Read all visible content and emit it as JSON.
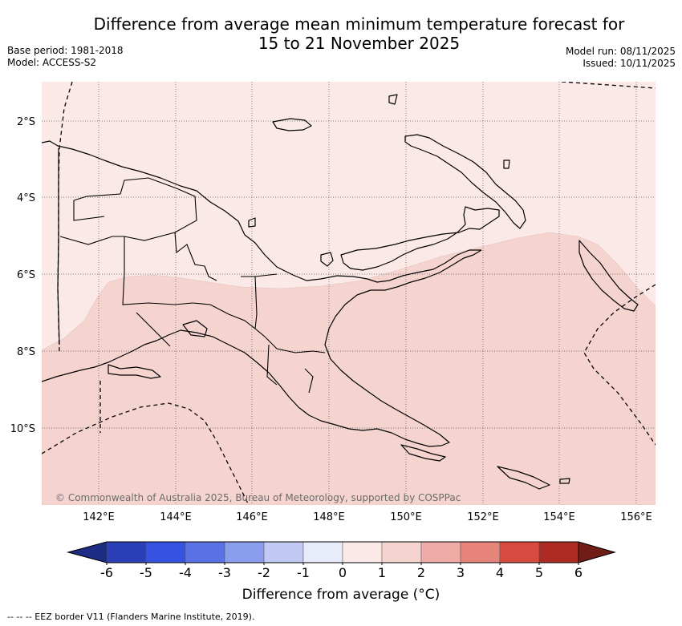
{
  "header": {
    "title_line1": "Difference from average mean minimum temperature forecast for",
    "title_line2": "15 to 21 November 2025",
    "base_period": "Base period: 1981-2018",
    "model": "Model: ACCESS-S2",
    "model_run": "Model run: 08/11/2025",
    "issued": "Issued: 10/11/2025"
  },
  "map": {
    "lat_labels": [
      "2°S",
      "4°S",
      "6°S",
      "8°S",
      "10°S"
    ],
    "lon_labels": [
      "142°E",
      "144°E",
      "146°E",
      "148°E",
      "150°E",
      "152°E",
      "154°E",
      "156°E"
    ],
    "copyright": "© Commonwealth of Australia 2025, Bureau of Meteorology, supported by COSPPac",
    "regions": [
      {
        "category": "0 to 1",
        "color": "#fbe9e7"
      },
      {
        "category": "1 to 2",
        "color": "#f5d4d0"
      }
    ]
  },
  "colorbar": {
    "ticks": [
      "-6",
      "-5",
      "-4",
      "-3",
      "-2",
      "-1",
      "0",
      "1",
      "2",
      "3",
      "4",
      "5",
      "6"
    ],
    "colors": [
      "#1d2c85",
      "#2b3fb8",
      "#3553e0",
      "#5b72e6",
      "#8b9ded",
      "#c3c9f5",
      "#e8ebfa",
      "#fbe9e7",
      "#f5d4d0",
      "#efaca7",
      "#e6837b",
      "#d84a40",
      "#ad2a22",
      "#701d17"
    ],
    "title": "Difference from average (°C)"
  },
  "footer": {
    "legend": "-- -- -- EEZ border V11 (Flanders Marine Institute, 2019)."
  }
}
